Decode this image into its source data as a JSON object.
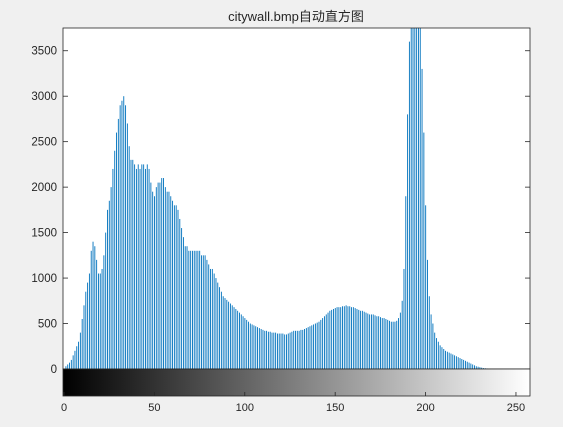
{
  "chart_data": {
    "type": "bar",
    "title": "citywall.bmp自动直方图",
    "xlabel": "",
    "ylabel": "",
    "xlim": [
      0,
      255
    ],
    "ylim": [
      0,
      3750
    ],
    "x_ticks": [
      "0",
      "50",
      "100",
      "150",
      "200",
      "250"
    ],
    "y_ticks": [
      "0",
      "500",
      "1000",
      "1500",
      "2000",
      "2500",
      "3000",
      "3500"
    ],
    "grid": false,
    "bar_color": "#0072bd",
    "colorbar": {
      "type": "grayscale",
      "from": 0,
      "to": 255
    },
    "series": [
      {
        "x_start": 0,
        "x_step": 1,
        "values": [
          0,
          30,
          50,
          70,
          100,
          150,
          200,
          250,
          300,
          400,
          550,
          700,
          850,
          950,
          1050,
          1300,
          1400,
          1350,
          1200,
          1050,
          1050,
          1100,
          1250,
          1500,
          1750,
          1850,
          2000,
          2200,
          2400,
          2600,
          2750,
          2900,
          2950,
          3000,
          2900,
          2700,
          2450,
          2300,
          2300,
          2250,
          2200,
          2250,
          2200,
          2250,
          2250,
          2200,
          2250,
          2200,
          2050,
          1950,
          1900,
          2000,
          2050,
          2050,
          2100,
          2100,
          2000,
          1950,
          1950,
          1900,
          1850,
          1800,
          1800,
          1750,
          1650,
          1550,
          1450,
          1350,
          1350,
          1300,
          1300,
          1300,
          1300,
          1300,
          1300,
          1300,
          1250,
          1250,
          1250,
          1200,
          1150,
          1100,
          1100,
          1050,
          1000,
          950,
          900,
          850,
          800,
          780,
          760,
          740,
          720,
          700,
          680,
          660,
          640,
          620,
          600,
          580,
          560,
          540,
          520,
          500,
          490,
          480,
          470,
          460,
          450,
          440,
          430,
          420,
          420,
          410,
          410,
          400,
          400,
          400,
          390,
          390,
          390,
          390,
          380,
          380,
          390,
          400,
          410,
          420,
          420,
          420,
          420,
          430,
          430,
          440,
          450,
          460,
          470,
          480,
          490,
          500,
          510,
          520,
          540,
          560,
          580,
          600,
          620,
          640,
          650,
          660,
          670,
          680,
          680,
          680,
          690,
          690,
          700,
          690,
          690,
          680,
          680,
          670,
          660,
          650,
          640,
          640,
          630,
          620,
          610,
          600,
          600,
          600,
          590,
          580,
          580,
          570,
          560,
          560,
          550,
          540,
          530,
          520,
          520,
          520,
          530,
          560,
          620,
          750,
          1100,
          1900,
          2800,
          3600,
          3750,
          3750,
          3750,
          3750,
          3750,
          3750,
          3300,
          2600,
          1800,
          1200,
          800,
          600,
          500,
          400,
          340,
          300,
          260,
          240,
          220,
          200,
          190,
          180,
          170,
          160,
          150,
          140,
          130,
          120,
          110,
          100,
          90,
          80,
          70,
          60,
          50,
          40,
          30,
          25,
          20,
          15,
          10,
          8,
          6,
          4,
          2,
          1,
          0,
          0,
          0,
          0,
          0,
          0,
          0,
          0,
          0,
          0,
          0,
          0,
          0,
          0,
          0,
          0,
          0,
          0
        ]
      }
    ]
  }
}
